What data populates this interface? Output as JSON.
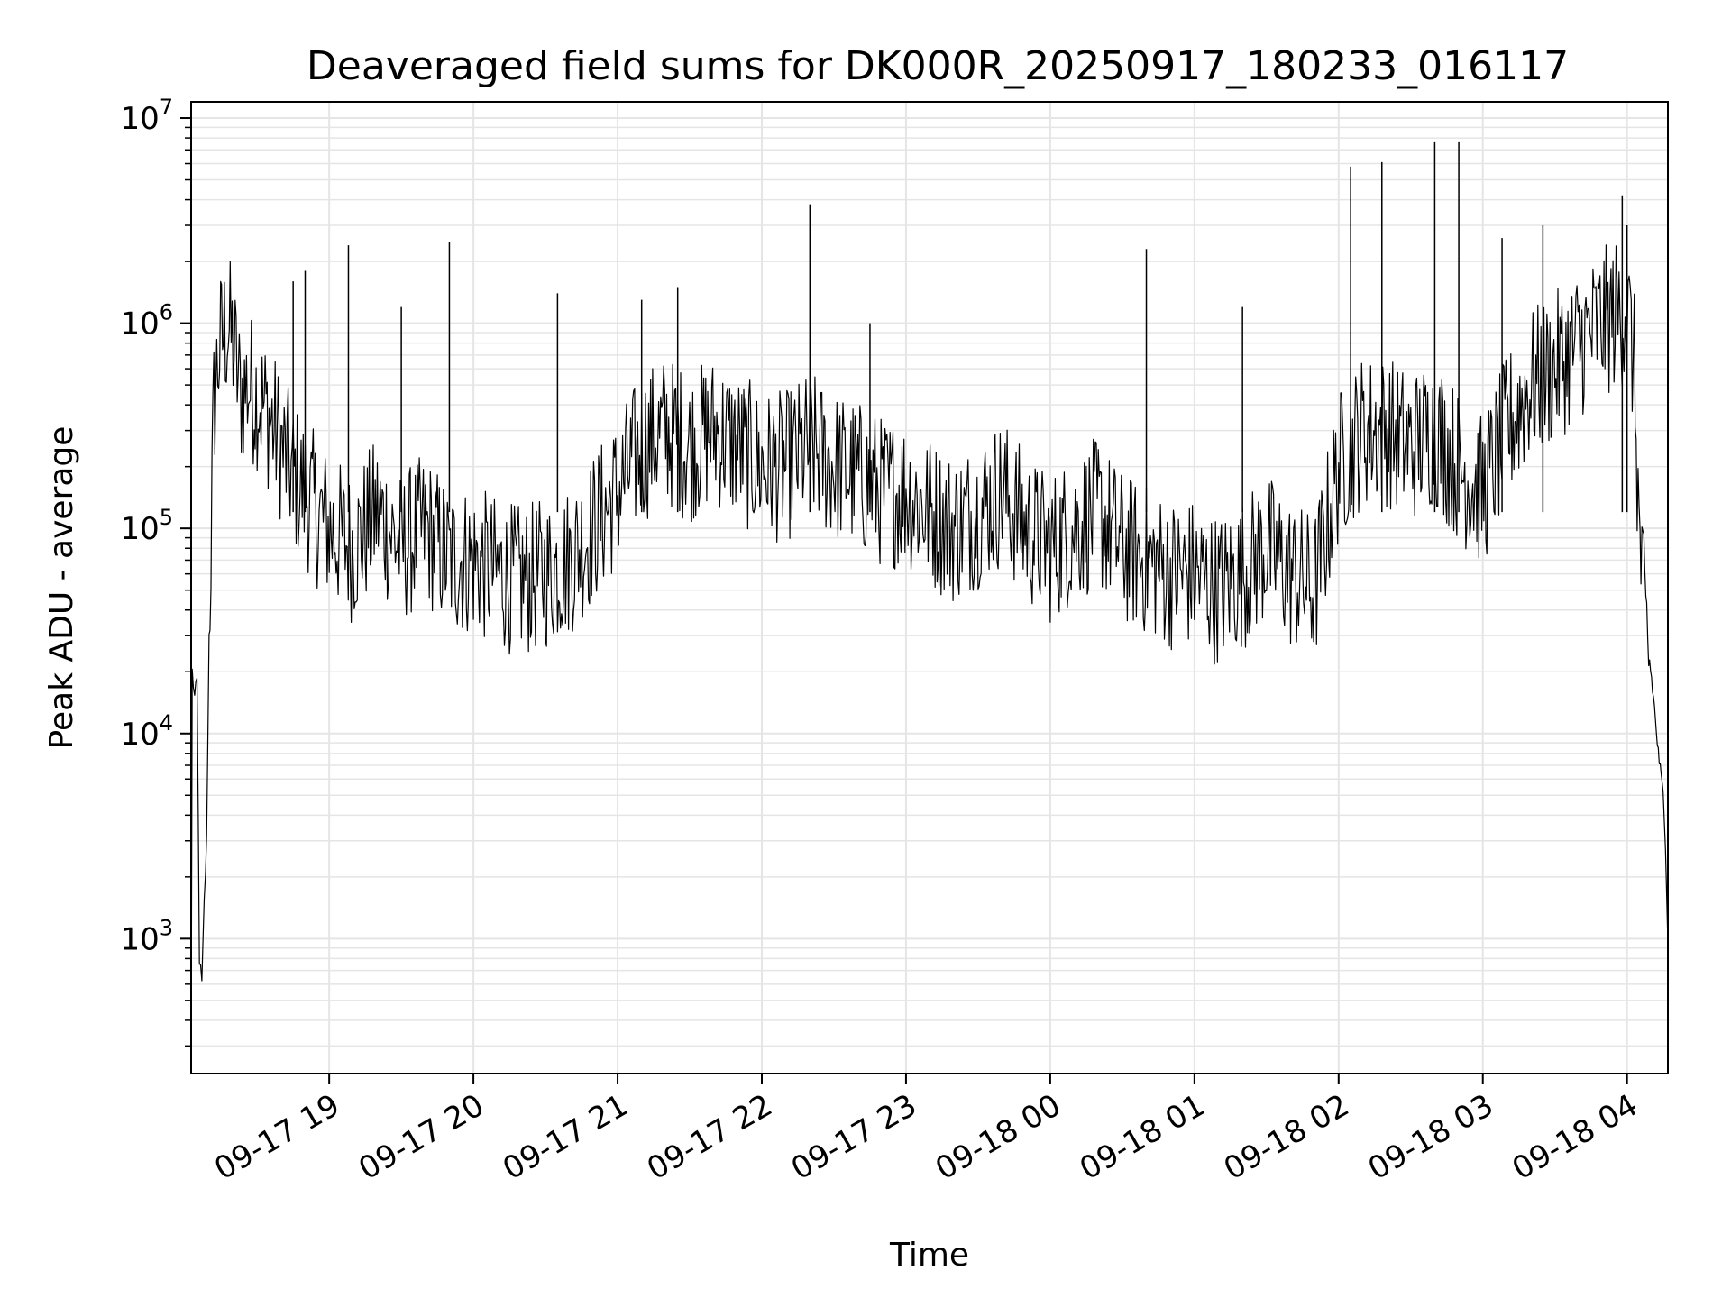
{
  "chart_data": {
    "type": "line",
    "title": "Deaveraged field sums for DK000R_20250917_180233_016117",
    "xlabel": "Time",
    "ylabel": "Peak ADU - average",
    "y_scale": "log",
    "ylim": [
      220,
      12000000
    ],
    "xlim": [
      "2025-09-17 18:02:33",
      "2025-09-18 04:17:00"
    ],
    "grid": true,
    "line_color": "#000000",
    "grid_color": "#e5e5e5",
    "x_ticks": [
      {
        "time": "2025-09-17 19:00",
        "label": "09-17 19"
      },
      {
        "time": "2025-09-17 20:00",
        "label": "09-17 20"
      },
      {
        "time": "2025-09-17 21:00",
        "label": "09-17 21"
      },
      {
        "time": "2025-09-17 22:00",
        "label": "09-17 22"
      },
      {
        "time": "2025-09-17 23:00",
        "label": "09-17 23"
      },
      {
        "time": "2025-09-18 00:00",
        "label": "09-18 00"
      },
      {
        "time": "2025-09-18 01:00",
        "label": "09-18 01"
      },
      {
        "time": "2025-09-18 02:00",
        "label": "09-18 02"
      },
      {
        "time": "2025-09-18 03:00",
        "label": "09-18 03"
      },
      {
        "time": "2025-09-18 04:00",
        "label": "09-18 04"
      }
    ],
    "y_ticks": [
      {
        "value": 1000,
        "base": "10",
        "exp": "3"
      },
      {
        "value": 10000,
        "base": "10",
        "exp": "4"
      },
      {
        "value": 100000,
        "base": "10",
        "exp": "5"
      },
      {
        "value": 1000000,
        "base": "10",
        "exp": "6"
      },
      {
        "value": 10000000,
        "base": "10",
        "exp": "7"
      }
    ],
    "series": [
      {
        "x": [
          "2025-09-17 18:02:33",
          "2025-09-17 18:03:00",
          "2025-09-17 18:04:00",
          "2025-09-17 18:05:00",
          "2025-09-17 18:06:00",
          "2025-09-17 18:07:00",
          "2025-09-17 18:08:00",
          "2025-09-17 18:09:00",
          "2025-09-17 18:10:00",
          "2025-09-17 18:12:00",
          "2025-09-17 18:14:00",
          "2025-09-17 18:16:00",
          "2025-09-17 18:18:00",
          "2025-09-17 18:20:00",
          "2025-09-17 18:23:00",
          "2025-09-17 18:26:00",
          "2025-09-17 18:30:00",
          "2025-09-17 18:35:00",
          "2025-09-17 18:40:00",
          "2025-09-17 18:45:00",
          "2025-09-17 18:50:00",
          "2025-09-17 18:55:00",
          "2025-09-17 19:00:00",
          "2025-09-17 19:10:00",
          "2025-09-17 19:20:00",
          "2025-09-17 19:30:00",
          "2025-09-17 19:40:00",
          "2025-09-17 19:50:00",
          "2025-09-17 20:00:00",
          "2025-09-17 20:10:00",
          "2025-09-17 20:20:00",
          "2025-09-17 20:30:00",
          "2025-09-17 20:40:00",
          "2025-09-17 20:50:00",
          "2025-09-17 21:00:00",
          "2025-09-17 21:10:00",
          "2025-09-17 21:20:00",
          "2025-09-17 21:30:00",
          "2025-09-17 21:40:00",
          "2025-09-17 21:50:00",
          "2025-09-17 22:00:00",
          "2025-09-17 22:10:00",
          "2025-09-17 22:20:00",
          "2025-09-17 22:30:00",
          "2025-09-17 22:40:00",
          "2025-09-17 22:50:00",
          "2025-09-17 23:00:00",
          "2025-09-17 23:10:00",
          "2025-09-17 23:20:00",
          "2025-09-17 23:30:00",
          "2025-09-17 23:40:00",
          "2025-09-17 23:50:00",
          "2025-09-18 00:00:00",
          "2025-09-18 00:10:00",
          "2025-09-18 00:20:00",
          "2025-09-18 00:30:00",
          "2025-09-18 00:40:00",
          "2025-09-18 00:50:00",
          "2025-09-18 01:00:00",
          "2025-09-18 01:10:00",
          "2025-09-18 01:20:00",
          "2025-09-18 01:30:00",
          "2025-09-18 01:40:00",
          "2025-09-18 01:50:00",
          "2025-09-18 02:00:00",
          "2025-09-18 02:10:00",
          "2025-09-18 02:20:00",
          "2025-09-18 02:30:00",
          "2025-09-18 02:40:00",
          "2025-09-18 02:50:00",
          "2025-09-18 03:00:00",
          "2025-09-18 03:10:00",
          "2025-09-18 03:20:00",
          "2025-09-18 03:30:00",
          "2025-09-18 03:40:00",
          "2025-09-18 03:50:00",
          "2025-09-18 04:00:00",
          "2025-09-18 04:03:00",
          "2025-09-18 04:05:00",
          "2025-09-18 04:07:00",
          "2025-09-18 04:09:00",
          "2025-09-18 04:11:00",
          "2025-09-18 04:13:00",
          "2025-09-18 04:15:00",
          "2025-09-18 04:16:00",
          "2025-09-18 04:17:00"
        ],
        "y": [
          250,
          20000,
          15000,
          18000,
          800,
          600,
          1500,
          3000,
          30000,
          400000,
          700000,
          900000,
          950000,
          800000,
          450000,
          500000,
          450000,
          350000,
          250000,
          180000,
          150000,
          120000,
          100000,
          80000,
          120000,
          80000,
          100000,
          70000,
          70000,
          60000,
          55000,
          60000,
          70000,
          100000,
          150000,
          250000,
          300000,
          250000,
          300000,
          250000,
          200000,
          200000,
          250000,
          200000,
          180000,
          150000,
          150000,
          120000,
          100000,
          120000,
          150000,
          100000,
          80000,
          100000,
          120000,
          80000,
          70000,
          60000,
          60000,
          50000,
          60000,
          80000,
          60000,
          50000,
          200000,
          300000,
          300000,
          250000,
          300000,
          200000,
          150000,
          300000,
          500000,
          600000,
          800000,
          1000000,
          1200000,
          600000,
          100000,
          40000,
          25000,
          15000,
          8000,
          5000,
          3000,
          1000
        ]
      }
    ],
    "spikes": [
      {
        "x": "2025-09-17 18:45:00",
        "y": 1600000
      },
      {
        "x": "2025-09-17 18:50:00",
        "y": 1800000
      },
      {
        "x": "2025-09-17 19:08:00",
        "y": 2400000
      },
      {
        "x": "2025-09-17 19:30:00",
        "y": 1200000
      },
      {
        "x": "2025-09-17 19:50:00",
        "y": 2500000
      },
      {
        "x": "2025-09-17 20:35:00",
        "y": 1400000
      },
      {
        "x": "2025-09-17 21:10:00",
        "y": 1300000
      },
      {
        "x": "2025-09-17 21:25:00",
        "y": 1500000
      },
      {
        "x": "2025-09-17 22:20:00",
        "y": 3800000
      },
      {
        "x": "2025-09-17 22:45:00",
        "y": 1000000
      },
      {
        "x": "2025-09-18 00:40:00",
        "y": 2300000
      },
      {
        "x": "2025-09-18 01:20:00",
        "y": 1200000
      },
      {
        "x": "2025-09-18 02:05:00",
        "y": 5800000
      },
      {
        "x": "2025-09-18 02:18:00",
        "y": 6100000
      },
      {
        "x": "2025-09-18 02:40:00",
        "y": 7700000
      },
      {
        "x": "2025-09-18 02:50:00",
        "y": 7700000
      },
      {
        "x": "2025-09-18 03:08:00",
        "y": 2600000
      },
      {
        "x": "2025-09-18 03:25:00",
        "y": 3000000
      },
      {
        "x": "2025-09-18 03:58:00",
        "y": 4200000
      },
      {
        "x": "2025-09-18 04:00:00",
        "y": 3000000
      }
    ]
  }
}
